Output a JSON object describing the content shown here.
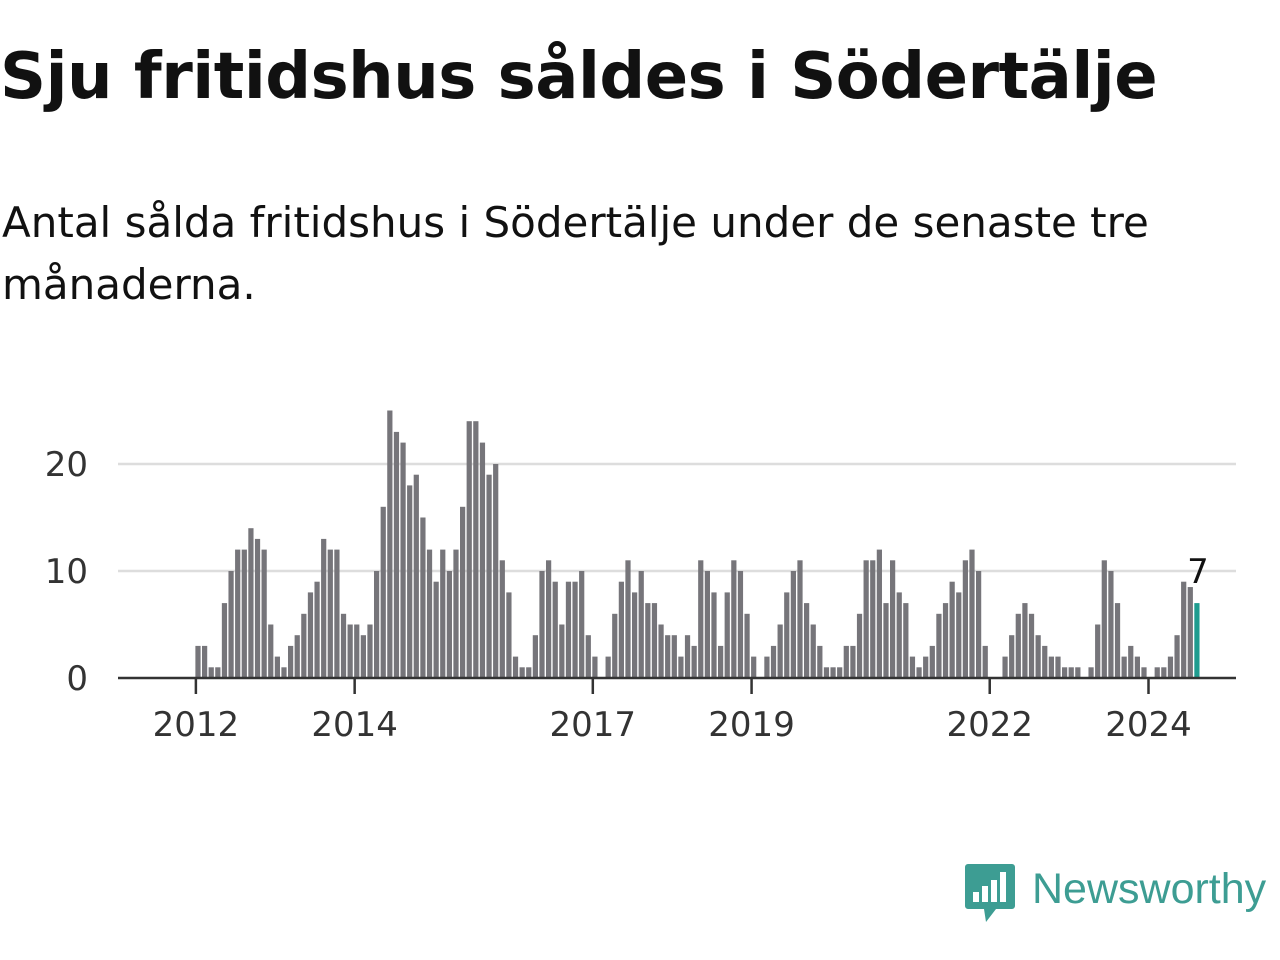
{
  "title": "Sju fritidshus såldes i Södertälje",
  "subtitle": "Antal sålda fritidshus i Södertälje under de senaste tre månaderna.",
  "brand": {
    "name": "Newsworthy",
    "color": "#3d9d93",
    "icon": "newsworthy-logo-icon"
  },
  "colors": {
    "bar": "#76757a",
    "highlight": "#1e9c8f",
    "grid": "#dddddd",
    "axis": "#333333"
  },
  "chart_data": {
    "type": "bar",
    "title": "Antal sålda fritidshus i Södertälje under de senaste tre månaderna.",
    "xlabel": "",
    "ylabel": "",
    "ylim": [
      0,
      25
    ],
    "yticks": [
      0,
      10,
      20
    ],
    "grid": true,
    "x_start": "2011-01",
    "x_end": "2025-02",
    "x_ticks": [
      {
        "label": "2012",
        "month": "2012-01"
      },
      {
        "label": "2014",
        "month": "2014-01"
      },
      {
        "label": "2017",
        "month": "2017-01"
      },
      {
        "label": "2019",
        "month": "2019-01"
      },
      {
        "label": "2022",
        "month": "2022-01"
      },
      {
        "label": "2024",
        "month": "2024-01"
      }
    ],
    "start_month": "2012-01",
    "values": [
      3,
      3,
      1,
      1,
      7,
      10,
      12,
      12,
      14,
      13,
      12,
      5,
      2,
      1,
      3,
      4,
      6,
      8,
      9,
      13,
      12,
      12,
      6,
      5,
      5,
      4,
      5,
      10,
      16,
      25,
      23,
      22,
      18,
      19,
      15,
      12,
      9,
      12,
      10,
      12,
      16,
      24,
      24,
      22,
      19,
      20,
      11,
      8,
      2,
      1,
      1,
      4,
      10,
      11,
      9,
      5,
      9,
      9,
      10,
      4,
      2,
      0,
      2,
      6,
      9,
      11,
      8,
      10,
      7,
      7,
      5,
      4,
      4,
      2,
      4,
      3,
      11,
      10,
      8,
      3,
      8,
      11,
      10,
      6,
      2,
      0,
      2,
      3,
      5,
      8,
      10,
      11,
      7,
      5,
      3,
      1,
      1,
      1,
      3,
      3,
      6,
      11,
      11,
      12,
      7,
      11,
      8,
      7,
      2,
      1,
      2,
      3,
      6,
      7,
      9,
      8,
      11,
      12,
      10,
      3,
      0,
      0,
      2,
      4,
      6,
      7,
      6,
      4,
      3,
      2,
      2,
      1,
      1,
      1,
      0,
      1,
      5,
      11,
      10,
      7,
      2,
      3,
      2,
      1,
      0,
      1,
      1,
      2,
      4,
      9,
      8.5,
      7
    ],
    "highlight_last": true,
    "last_value_label": "7"
  }
}
